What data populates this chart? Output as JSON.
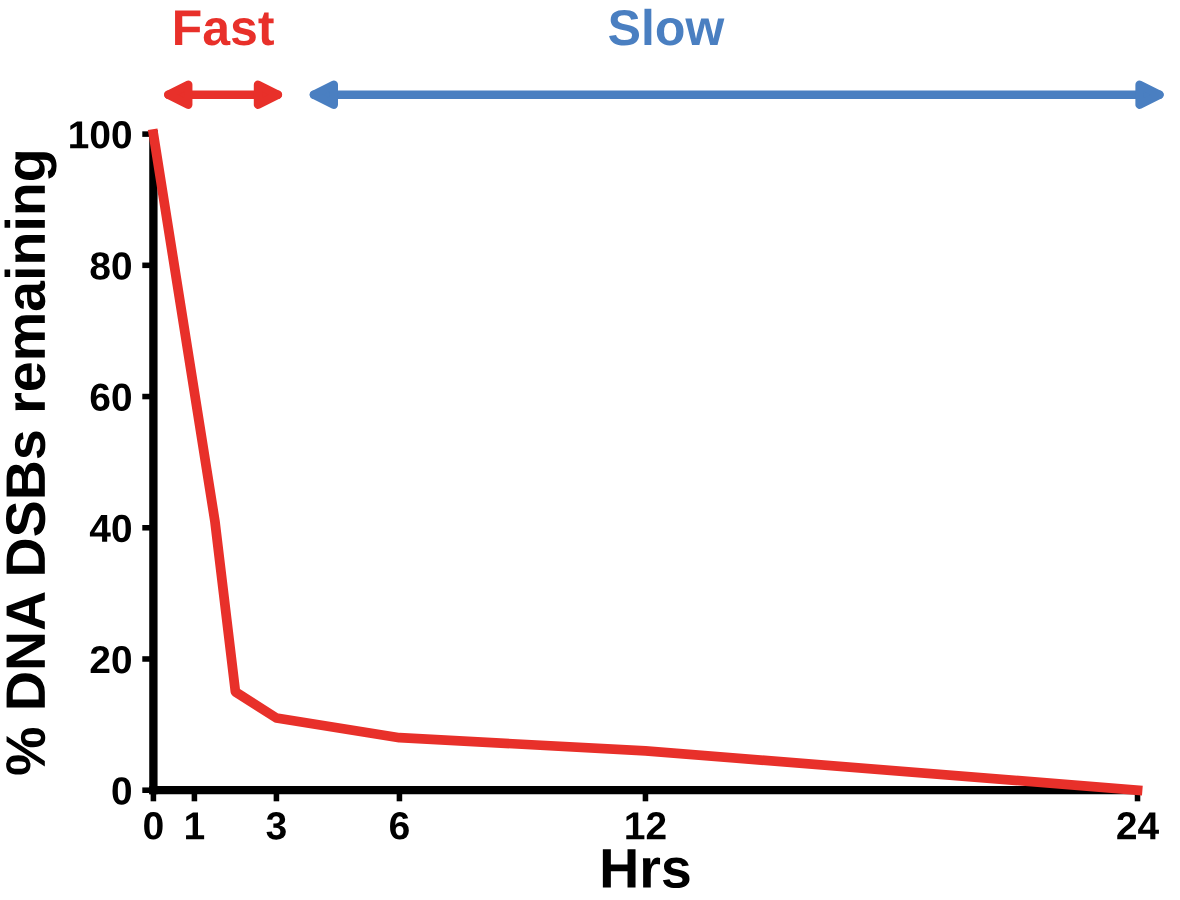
{
  "chart_data": {
    "type": "line",
    "xlabel": "Hrs",
    "ylabel": "% DNA DSBs remaining",
    "x": [
      0,
      1.5,
      2,
      3,
      6,
      12,
      24
    ],
    "series": [
      {
        "color": "#e8302a",
        "values": [
          100,
          41,
          15,
          11,
          8,
          6,
          0
        ]
      }
    ],
    "xlim": [
      0,
      24
    ],
    "xticks": [
      0,
      1,
      3,
      6,
      12,
      24
    ],
    "ylim": [
      0,
      100
    ],
    "yticks": [
      0,
      20,
      40,
      60,
      80,
      100
    ],
    "grid": false,
    "legend": false,
    "marker": "none",
    "line_style": "solid",
    "annotations": [
      "Fast",
      "Slow"
    ]
  }
}
